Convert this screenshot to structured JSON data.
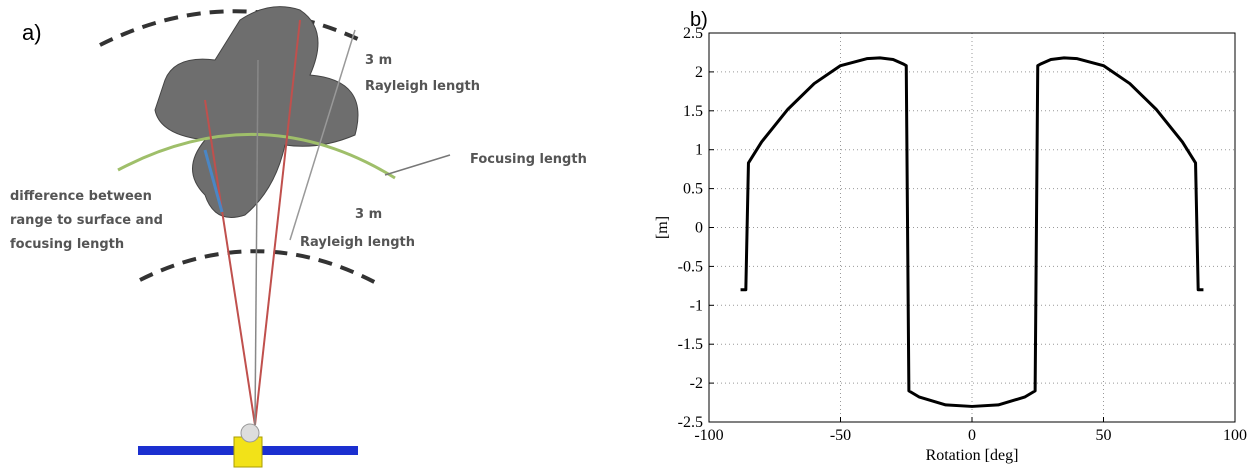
{
  "panel_a": {
    "label": "a)",
    "top_distance": "3 m",
    "top_caption": "Rayleigh length",
    "focusing": "Focusing length",
    "difference": [
      "difference between",
      "range to surface and",
      "focusing length"
    ],
    "bottom_distance": "3 m",
    "bottom_caption": "Rayleigh length"
  },
  "panel_b_label": "b)",
  "chart_data": {
    "type": "line",
    "xlabel": "Rotation [deg]",
    "ylabel": "[m]",
    "color": "#000000",
    "grid": true,
    "x": [
      -88,
      -86,
      -85,
      -80,
      -70,
      -60,
      -50,
      -40,
      -35,
      -30,
      -26,
      -25,
      -24,
      -20,
      -10,
      0,
      10,
      20,
      24,
      25,
      26,
      30,
      35,
      40,
      50,
      60,
      70,
      80,
      85,
      86,
      88
    ],
    "values": [
      -0.8,
      -0.8,
      0.83,
      1.1,
      1.52,
      1.85,
      2.08,
      2.17,
      2.18,
      2.16,
      2.1,
      2.08,
      -2.1,
      -2.18,
      -2.28,
      -2.3,
      -2.28,
      -2.18,
      -2.1,
      2.08,
      2.1,
      2.16,
      2.18,
      2.17,
      2.08,
      1.85,
      1.52,
      1.1,
      0.83,
      -0.8,
      -0.8
    ],
    "xlim": [
      -100,
      100
    ],
    "xticks": [
      -100,
      -50,
      0,
      50,
      100
    ],
    "ylim": [
      -2.5,
      2.5
    ],
    "yticks": [
      -2.5,
      -2,
      -1.5,
      -1,
      -0.5,
      0,
      0.5,
      1,
      1.5,
      2,
      2.5
    ]
  }
}
